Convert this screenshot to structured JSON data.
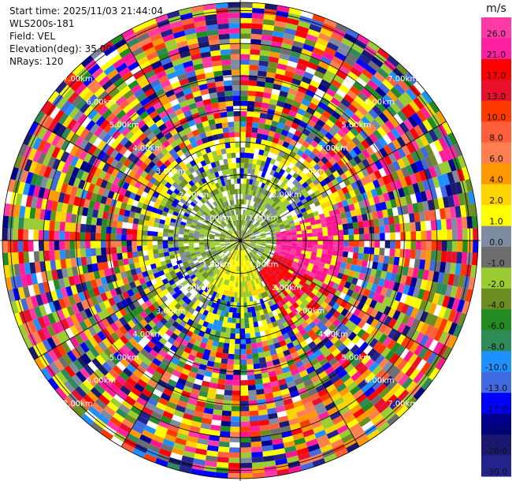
{
  "header": {
    "start_time": "Start time: 2025/11/03 21:44:04",
    "station": "WLS200s-181",
    "field": "Field: VEL",
    "elevation": "Elevation(deg): 35.00",
    "nrays": "NRays: 120"
  },
  "chart_data": {
    "type": "heatmap",
    "projection": "polar-ppi",
    "field": "VEL",
    "n_rays": 120,
    "range_rings_km": [
      "1.00km",
      "2.00km",
      "3.00km",
      "4.00km",
      "5.00km",
      "6.00km",
      "7.00km"
    ],
    "radial_lines": 12,
    "colorbar": {
      "unit": "m/s",
      "ticks": [
        "26.0",
        "21.0",
        "17.0",
        "13.0",
        "10.0",
        "8.0",
        "6.0",
        "4.0",
        "2.0",
        "1.0",
        "0.0",
        "-1.0",
        "-2.0",
        "-4.0",
        "-6.0",
        "-8.0",
        "-10.0",
        "-13.0",
        "-17.0",
        "-21.0",
        "-26.0",
        "-30.0"
      ],
      "colors": [
        "#ff3aa6",
        "#ff1fa0",
        "#ff0000",
        "#e8102a",
        "#ff3a00",
        "#ff5f3a",
        "#ff7f50",
        "#ff9900",
        "#ffd400",
        "#ffff00",
        "#7d8ca0",
        "#6e6e6e",
        "#9acd32",
        "#6b8e23",
        "#228b22",
        "#2e8b57",
        "#1e90ff",
        "#4169e1",
        "#0000ff",
        "#00008b",
        "#191970",
        "#23238e"
      ]
    },
    "inner_zone": {
      "description_colors": {
        "near": [
          "#9acd32",
          "#6b8e23",
          "#7d8ca0",
          "#ffff00"
        ],
        "east": [
          "#ff1493",
          "#ff3aa6"
        ],
        "southeast": [
          "#ff0000",
          "#e8102a"
        ],
        "south": [
          "#ffff00",
          "#ffd400",
          "#0000ff",
          "#2e8b57"
        ]
      }
    }
  }
}
